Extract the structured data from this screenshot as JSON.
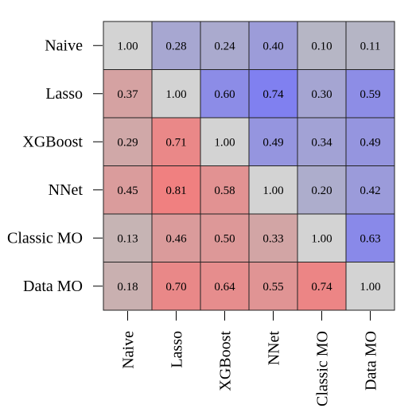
{
  "chart_data": {
    "type": "heatmap",
    "title": "",
    "xlabel": "",
    "ylabel": "",
    "rows": [
      "Naive",
      "Lasso",
      "XGBoost",
      "NNet",
      "Classic MO",
      "Data MO"
    ],
    "columns": [
      "Naive",
      "Lasso",
      "XGBoost",
      "NNet",
      "Classic MO",
      "Data MO"
    ],
    "values": [
      [
        1.0,
        0.28,
        0.24,
        0.4,
        0.1,
        0.11
      ],
      [
        0.37,
        1.0,
        0.6,
        0.74,
        0.3,
        0.59
      ],
      [
        0.29,
        0.71,
        1.0,
        0.49,
        0.34,
        0.49
      ],
      [
        0.45,
        0.81,
        0.58,
        1.0,
        0.2,
        0.42
      ],
      [
        0.13,
        0.46,
        0.5,
        0.33,
        1.0,
        0.63
      ],
      [
        0.18,
        0.7,
        0.64,
        0.55,
        0.74,
        1.0
      ]
    ],
    "value_format": "0.00",
    "colors": {
      "diagonal": "#d3d3d3",
      "lower_triangle_base": "#bebebe",
      "lower_triangle_high": "#f08080",
      "upper_triangle_base": "#bebebe",
      "upper_triangle_high": "#8080f0",
      "grid": "#222222"
    },
    "grid": true,
    "legend": "none"
  }
}
